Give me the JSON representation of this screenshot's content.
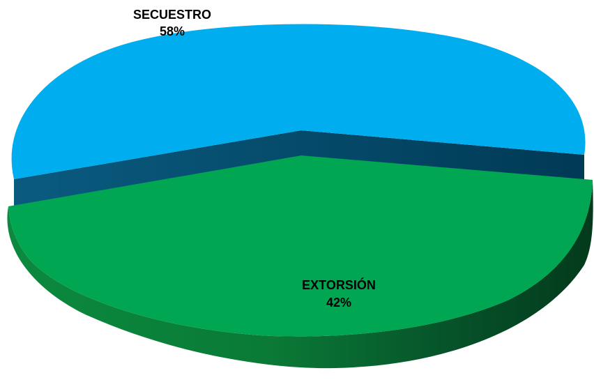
{
  "chart_data": {
    "type": "pie",
    "title": "",
    "slices": [
      {
        "name": "SECUESTRO",
        "value": 58,
        "value_label": "58%",
        "color": "#00AEEF",
        "side_color": "#003F5F"
      },
      {
        "name": "EXTORSIÓN",
        "value": 42,
        "value_label": "42%",
        "color": "#00A651",
        "side_color": "#004D23"
      }
    ],
    "style": "3d-exploded",
    "legend": "none"
  }
}
